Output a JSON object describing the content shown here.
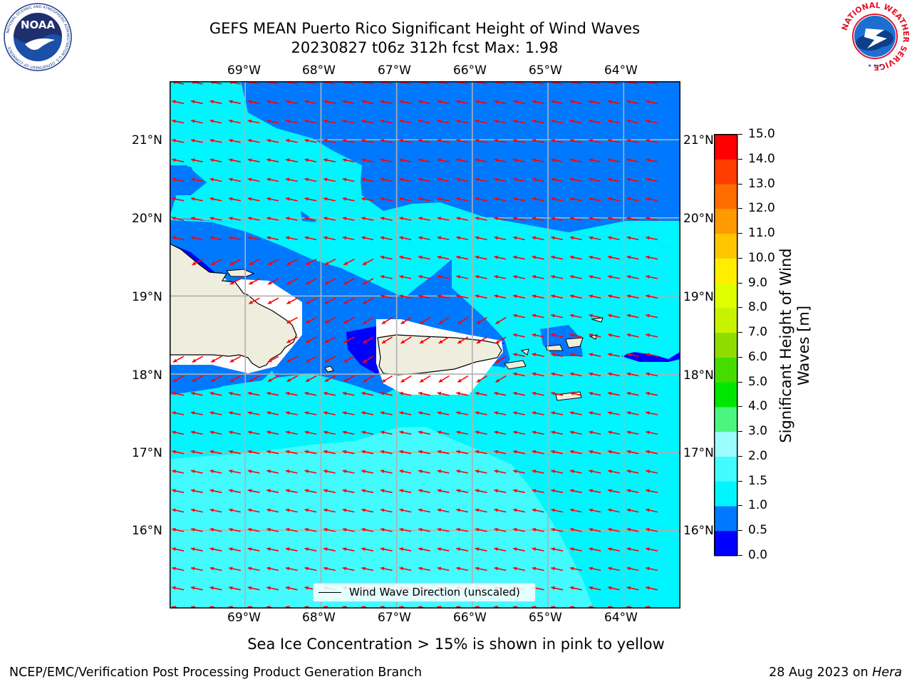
{
  "header": {
    "title_line1": "GEFS MEAN Puerto Rico Significant Height of Wind Waves",
    "title_line2": "20230827 t06z 312h fcst   Max: 1.98"
  },
  "logos": {
    "left": {
      "icon": "noaa-logo-icon",
      "text": "NOAA",
      "ring_text": "NATIONAL OCEANIC AND ATMOSPHERIC ADMINISTRATION U.S. DEPARTMENT OF COMMERCE"
    },
    "right": {
      "icon": "nws-logo-icon",
      "ring_text": "NATIONAL WEATHER SERVICE"
    }
  },
  "map": {
    "lon_labels": [
      "69°W",
      "68°W",
      "67°W",
      "66°W",
      "65°W",
      "64°W"
    ],
    "lat_labels": [
      "21°N",
      "20°N",
      "19°N",
      "18°N",
      "17°N",
      "16°N"
    ],
    "extent": {
      "lon": [
        -70,
        -63.25
      ],
      "lat": [
        15.0,
        21.75
      ]
    },
    "grid": true,
    "land_color": "#efedde",
    "coast_color": "#000000",
    "arrow_color": "#ff0000",
    "arrow_direction": "toward west-northwest"
  },
  "colorbar": {
    "label": "Significant Height of Wind Waves [m]",
    "ticks": [
      "0.0",
      "0.5",
      "1.0",
      "1.5",
      "2.0",
      "3.0",
      "4.0",
      "5.0",
      "6.0",
      "7.0",
      "8.0",
      "9.0",
      "10.0",
      "11.0",
      "12.0",
      "13.0",
      "14.0",
      "15.0"
    ],
    "colors": [
      "#0000ff",
      "#0079ff",
      "#00f5ff",
      "#43faff",
      "#9cfdff",
      "#4bf57f",
      "#00e600",
      "#46dc00",
      "#8fdd00",
      "#c8f200",
      "#dfff00",
      "#ffee00",
      "#ffc600",
      "#ff9a00",
      "#ff6c00",
      "#ff3d00",
      "#ff0000"
    ]
  },
  "legend": {
    "label": "Wind Wave Direction (unscaled)"
  },
  "caption": "Sea Ice Concentration > 15% is shown in pink to yellow",
  "footer": {
    "left": "NCEP/EMC/Verification Post Processing Product Generation Branch",
    "right_prefix": "28 Aug 2023 on ",
    "right_host": "Hera"
  }
}
